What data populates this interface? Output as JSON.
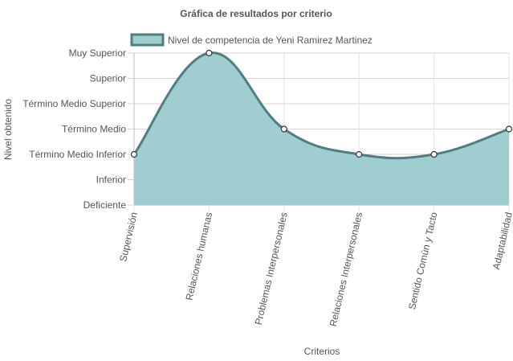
{
  "chart_data": {
    "type": "area",
    "title": "Gráfica de resultados por criterio",
    "xlabel": "Criterios",
    "ylabel": "Nivel obtenido",
    "categories": [
      "Supervisión",
      "Relaciones humanas",
      "Problemas Interpersonales",
      "Relaciones Interpersonales",
      "Sentido Común y Tacto",
      "Adaptabilidad"
    ],
    "y_levels": [
      "Deficiente",
      "Inferior",
      "Término Medio Inferior",
      "Término Medio",
      "Término Medio Superior",
      "Superior",
      "Muy Superior"
    ],
    "ylim": [
      0,
      6
    ],
    "series": [
      {
        "name": "Nivel de competencia de Yeni Ramirez Martinez",
        "values": [
          2,
          6,
          3,
          2,
          2,
          3
        ],
        "fill_color": "#a0cdd0",
        "line_color": "#4d7e84"
      }
    ],
    "grid": true,
    "legend_position": "top"
  }
}
